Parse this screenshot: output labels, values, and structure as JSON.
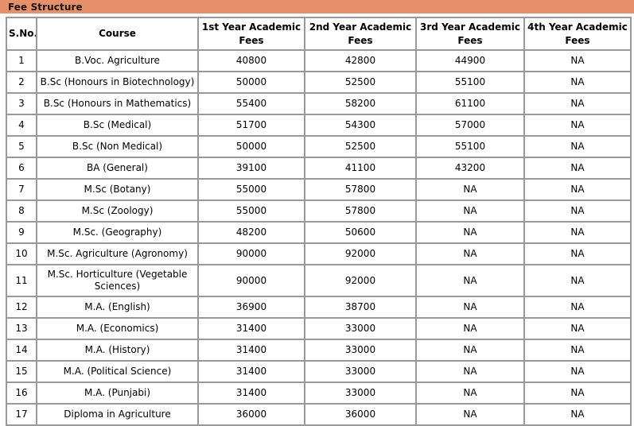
{
  "header": {
    "title": "Fee Structure"
  },
  "colors": {
    "title_bar_bg": "#E8906A",
    "title_text": "#151515",
    "table_border": "#999999",
    "cell_text": "#000000",
    "cell_bg": "#FFFFFF"
  },
  "table": {
    "columns": [
      "S.No.",
      "Course",
      "1st Year Academic Fees",
      "2nd Year Academic Fees",
      "3rd Year Academic Fees",
      "4th Year Academic Fees"
    ],
    "rows": [
      [
        "1",
        "B.Voc. Agriculture",
        "40800",
        "42800",
        "44900",
        "NA"
      ],
      [
        "2",
        "B.Sc (Honours in Biotechnology)",
        "50000",
        "52500",
        "55100",
        "NA"
      ],
      [
        "3",
        "B.Sc (Honours in Mathematics)",
        "55400",
        "58200",
        "61100",
        "NA"
      ],
      [
        "4",
        "B.Sc (Medical)",
        "51700",
        "54300",
        "57000",
        "NA"
      ],
      [
        "5",
        "B.Sc (Non Medical)",
        "50000",
        "52500",
        "55100",
        "NA"
      ],
      [
        "6",
        "BA (General)",
        "39100",
        "41100",
        "43200",
        "NA"
      ],
      [
        "7",
        "M.Sc (Botany)",
        "55000",
        "57800",
        "NA",
        "NA"
      ],
      [
        "8",
        "M.Sc (Zoology)",
        "55000",
        "57800",
        "NA",
        "NA"
      ],
      [
        "9",
        "M.Sc. (Geography)",
        "48200",
        "50600",
        "NA",
        "NA"
      ],
      [
        "10",
        "M.Sc. Agriculture (Agronomy)",
        "90000",
        "92000",
        "NA",
        "NA"
      ],
      [
        "11",
        "M.Sc. Horticulture (Vegetable Sciences)",
        "90000",
        "92000",
        "NA",
        "NA"
      ],
      [
        "12",
        "M.A. (English)",
        "36900",
        "38700",
        "NA",
        "NA"
      ],
      [
        "13",
        "M.A. (Economics)",
        "31400",
        "33000",
        "NA",
        "NA"
      ],
      [
        "14",
        "M.A. (History)",
        "31400",
        "33000",
        "NA",
        "NA"
      ],
      [
        "15",
        "M.A. (Political Science)",
        "31400",
        "33000",
        "NA",
        "NA"
      ],
      [
        "16",
        "M.A. (Punjabi)",
        "31400",
        "33000",
        "NA",
        "NA"
      ],
      [
        "17",
        "Diploma in Agriculture",
        "36000",
        "36000",
        "NA",
        "NA"
      ]
    ]
  }
}
